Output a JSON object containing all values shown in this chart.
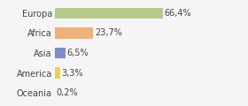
{
  "categories": [
    "Europa",
    "Africa",
    "Asia",
    "America",
    "Oceania"
  ],
  "values": [
    66.4,
    23.7,
    6.5,
    3.3,
    0.2
  ],
  "labels": [
    "66,4%",
    "23,7%",
    "6,5%",
    "3,3%",
    "0,2%"
  ],
  "bar_colors": [
    "#b5c98a",
    "#f0b07a",
    "#7b8ec8",
    "#e8d060",
    "#b0b0b0"
  ],
  "background_color": "#f5f5f5",
  "xlim": [
    0,
    100
  ],
  "label_fontsize": 7.0,
  "tick_fontsize": 7.0,
  "bar_height": 0.55
}
